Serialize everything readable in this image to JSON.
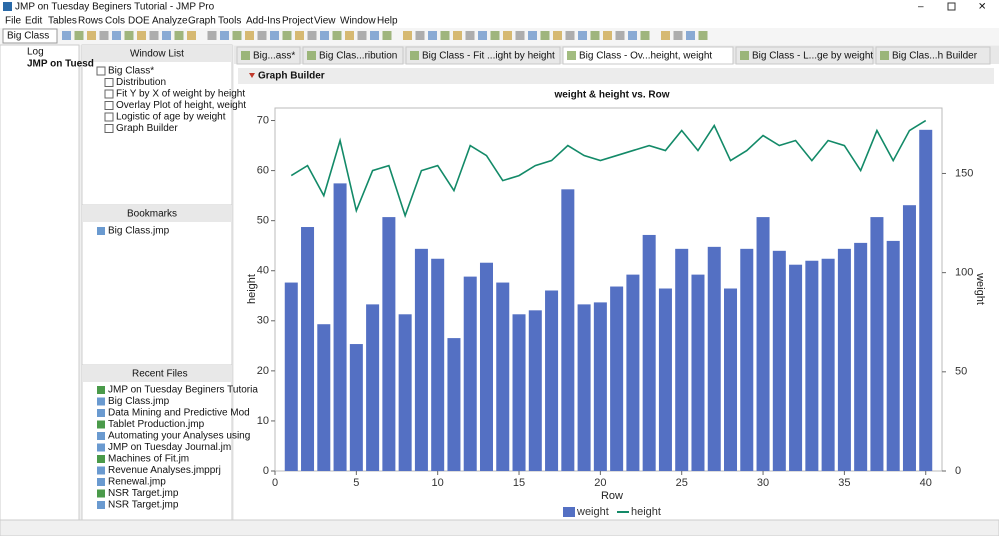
{
  "window_title": "JMP on Tuesday Beginers Tutorial - JMP Pro",
  "menu": [
    "File",
    "Edit",
    "Tables",
    "Rows",
    "Cols",
    "DOE",
    "Analyze",
    "Graph",
    "Tools",
    "Add-Ins",
    "Project",
    "View",
    "Window",
    "Help"
  ],
  "table_selector": "Big Class",
  "project_tree": [
    "Log",
    "JMP on Tuesd"
  ],
  "window_list": {
    "title": "Window List",
    "items": [
      "Big Class*",
      "Distribution",
      "Fit Y by X of weight by height",
      "Overlay Plot of height, weight",
      "Logistic of age by weight",
      "Graph Builder"
    ]
  },
  "bookmarks": {
    "title": "Bookmarks",
    "items": [
      "Big Class.jmp"
    ]
  },
  "recent_files": {
    "title": "Recent Files",
    "items": [
      "JMP on Tuesday Beginers Tutoria",
      "Big Class.jmp",
      "Data Mining and Predictive Mod",
      "Tablet Production.jmp",
      "Automating your Analyses using",
      "JMP on Tuesday Journal.jm",
      "Machines of Fit.jm",
      "Revenue Analyses.jmpprj",
      "Renewal.jmp",
      "NSR Target.jmp",
      "NSR Target.jmp"
    ]
  },
  "tabs": [
    "Big...ass*",
    "Big Clas...ribution",
    "Big Class - Fit ...ight by height",
    "Big Class - Ov...height, weight",
    "Big Class - L...ge by weight",
    "Big Clas...h Builder"
  ],
  "report_title": "Graph Builder",
  "chart_data": {
    "type": "bar",
    "title": "weight & height vs. Row",
    "xlabel": "Row",
    "ylabel": "height",
    "y2label": "weight",
    "x": [
      1,
      2,
      3,
      4,
      5,
      6,
      7,
      8,
      9,
      10,
      11,
      12,
      13,
      14,
      15,
      16,
      17,
      18,
      19,
      20,
      21,
      22,
      23,
      24,
      25,
      26,
      27,
      28,
      29,
      30,
      31,
      32,
      33,
      34,
      35,
      36,
      37,
      38,
      39,
      40
    ],
    "series": [
      {
        "name": "weight",
        "type": "bar",
        "axis": "y2",
        "color": "#5470c3",
        "values": [
          95,
          123,
          74,
          145,
          64,
          84,
          128,
          79,
          112,
          107,
          67,
          98,
          105,
          95,
          79,
          81,
          91,
          142,
          84,
          85,
          93,
          99,
          119,
          92,
          112,
          99,
          113,
          92,
          112,
          128,
          111,
          104,
          106,
          107,
          112,
          115,
          128,
          116,
          134,
          172
        ]
      },
      {
        "name": "height",
        "type": "line",
        "color": "#138a68",
        "values": [
          59,
          61,
          55,
          66,
          52,
          60,
          61,
          51,
          60,
          61,
          56,
          65,
          63,
          58,
          59,
          61,
          62,
          65,
          63,
          62,
          63,
          64,
          65,
          64,
          68,
          64,
          69,
          62,
          64,
          67,
          65,
          66,
          62,
          66,
          65,
          60,
          68,
          62,
          68,
          70
        ]
      }
    ],
    "xlim": [
      0,
      41
    ],
    "xticks": [
      0,
      5,
      10,
      15,
      20,
      25,
      30,
      35,
      40
    ],
    "ylim": [
      0,
      72.5
    ],
    "yticks": [
      0,
      10,
      20,
      30,
      40,
      50,
      60,
      70
    ],
    "y2lim": [
      0,
      183
    ],
    "y2ticks": [
      0,
      50,
      100,
      150
    ]
  }
}
